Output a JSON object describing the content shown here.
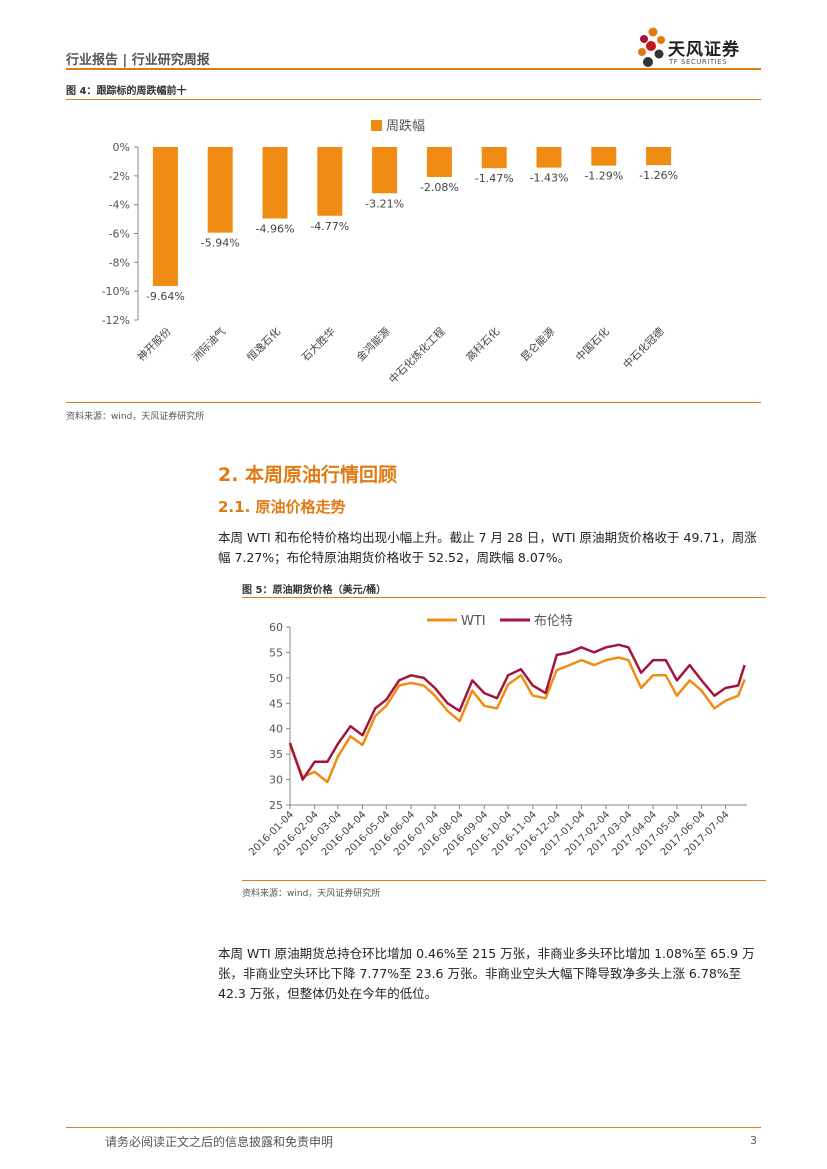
{
  "header": {
    "title": "行业报告 | 行业研究周报",
    "logo_text": "天风证券",
    "logo_sub": "TF SECURITIES"
  },
  "figure4": {
    "caption": "图 4：跟踪标的周跌幅前十",
    "source": "资料来源：wind，天风证券研究所"
  },
  "section2": {
    "heading": "2. 本周原油行情回顾",
    "sub_heading": "2.1. 原油价格走势",
    "paragraph1": "本周 WTI 和布伦特价格均出现小幅上升。截止 7 月 28 日，WTI 原油期货价格收于 49.71，周涨幅 7.27%；布伦特原油期货价格收于 52.52，周跌幅 8.07%。"
  },
  "figure5": {
    "caption": "图 5：原油期货价格（美元/桶）",
    "source": "资料来源：wind，天风证券研究所"
  },
  "paragraph2": "本周 WTI 原油期货总持仓环比增加 0.46%至 215 万张，非商业多头环比增加 1.08%至 65.9 万张，非商业空头环比下降 7.77%至 23.6 万张。非商业空头大幅下降导致净多头上涨 6.78%至 42.3 万张，但整体仍处在今年的低位。",
  "footer": {
    "disclaimer": "请务必阅读正文之后的信息披露和免责申明",
    "page_number": "3"
  },
  "colors": {
    "accent": "#e07a14",
    "bar": "#f08c14",
    "wti": "#f08c14",
    "brent": "#a3163b"
  },
  "chart_data": [
    {
      "type": "bar",
      "legend": [
        "周跌幅"
      ],
      "legend_position": "top",
      "categories": [
        "神开股份",
        "洲际油气",
        "恒逸石化",
        "石大胜华",
        "金鸿能源",
        "中石化炼化工程",
        "高科石化",
        "昆仑能源",
        "中国石化",
        "中石化冠德"
      ],
      "values": [
        -9.64,
        -5.94,
        -4.96,
        -4.77,
        -3.21,
        -2.08,
        -1.47,
        -1.43,
        -1.29,
        -1.26
      ],
      "data_labels": [
        "-9.64%",
        "-5.94%",
        "-4.96%",
        "-4.77%",
        "-3.21%",
        "-2.08%",
        "-1.47%",
        "-1.43%",
        "-1.29%",
        "-1.26%"
      ],
      "ylim": [
        -12,
        0
      ],
      "yticks": [
        "0%",
        "-2%",
        "-4%",
        "-6%",
        "-8%",
        "-10%",
        "-12%"
      ],
      "grid": false
    },
    {
      "type": "line",
      "legend_position": "top",
      "ylim": [
        25,
        60
      ],
      "yticks": [
        "60",
        "55",
        "50",
        "45",
        "40",
        "35",
        "30",
        "25"
      ],
      "xticks": [
        "2016-01-04",
        "2016-02-04",
        "2016-03-04",
        "2016-04-04",
        "2016-05-04",
        "2016-06-04",
        "2016-07-04",
        "2016-08-04",
        "2016-09-04",
        "2016-10-04",
        "2016-11-04",
        "2016-12-04",
        "2017-01-04",
        "2017-02-04",
        "2017-03-04",
        "2017-04-04",
        "2017-05-04",
        "2017-06-04",
        "2017-07-04"
      ],
      "x": [
        "2016-01-04",
        "2016-01-20",
        "2016-02-04",
        "2016-02-20",
        "2016-03-04",
        "2016-03-20",
        "2016-04-04",
        "2016-04-20",
        "2016-05-04",
        "2016-05-20",
        "2016-06-04",
        "2016-06-20",
        "2016-07-04",
        "2016-07-20",
        "2016-08-04",
        "2016-08-20",
        "2016-09-04",
        "2016-09-20",
        "2016-10-04",
        "2016-10-20",
        "2016-11-04",
        "2016-11-20",
        "2016-12-04",
        "2016-12-20",
        "2017-01-04",
        "2017-01-20",
        "2017-02-04",
        "2017-02-20",
        "2017-03-04",
        "2017-03-20",
        "2017-04-04",
        "2017-04-20",
        "2017-05-04",
        "2017-05-20",
        "2017-06-04",
        "2017-06-20",
        "2017-07-04",
        "2017-07-20",
        "2017-07-28"
      ],
      "series": [
        {
          "name": "WTI",
          "values": [
            36.8,
            30.5,
            31.5,
            29.5,
            34.5,
            38.5,
            36.8,
            42.5,
            44.5,
            48.5,
            49.0,
            48.5,
            46.5,
            43.5,
            41.5,
            47.5,
            44.5,
            44.0,
            48.7,
            50.5,
            46.5,
            46.0,
            51.5,
            52.5,
            53.5,
            52.5,
            53.5,
            54.0,
            53.5,
            48.0,
            50.5,
            50.5,
            46.5,
            49.5,
            47.5,
            44.0,
            45.5,
            46.5,
            49.7
          ]
        },
        {
          "name": "布伦特",
          "values": [
            37.2,
            30.0,
            33.5,
            33.5,
            37.0,
            40.5,
            38.7,
            44.0,
            45.7,
            49.5,
            50.5,
            50.0,
            48.0,
            45.0,
            43.5,
            49.5,
            47.0,
            46.0,
            50.5,
            51.7,
            48.5,
            47.0,
            54.5,
            55.0,
            56.0,
            55.0,
            56.0,
            56.5,
            56.0,
            51.0,
            53.5,
            53.5,
            49.5,
            52.5,
            49.5,
            46.5,
            48.0,
            48.5,
            52.5
          ]
        }
      ],
      "grid": false
    }
  ]
}
